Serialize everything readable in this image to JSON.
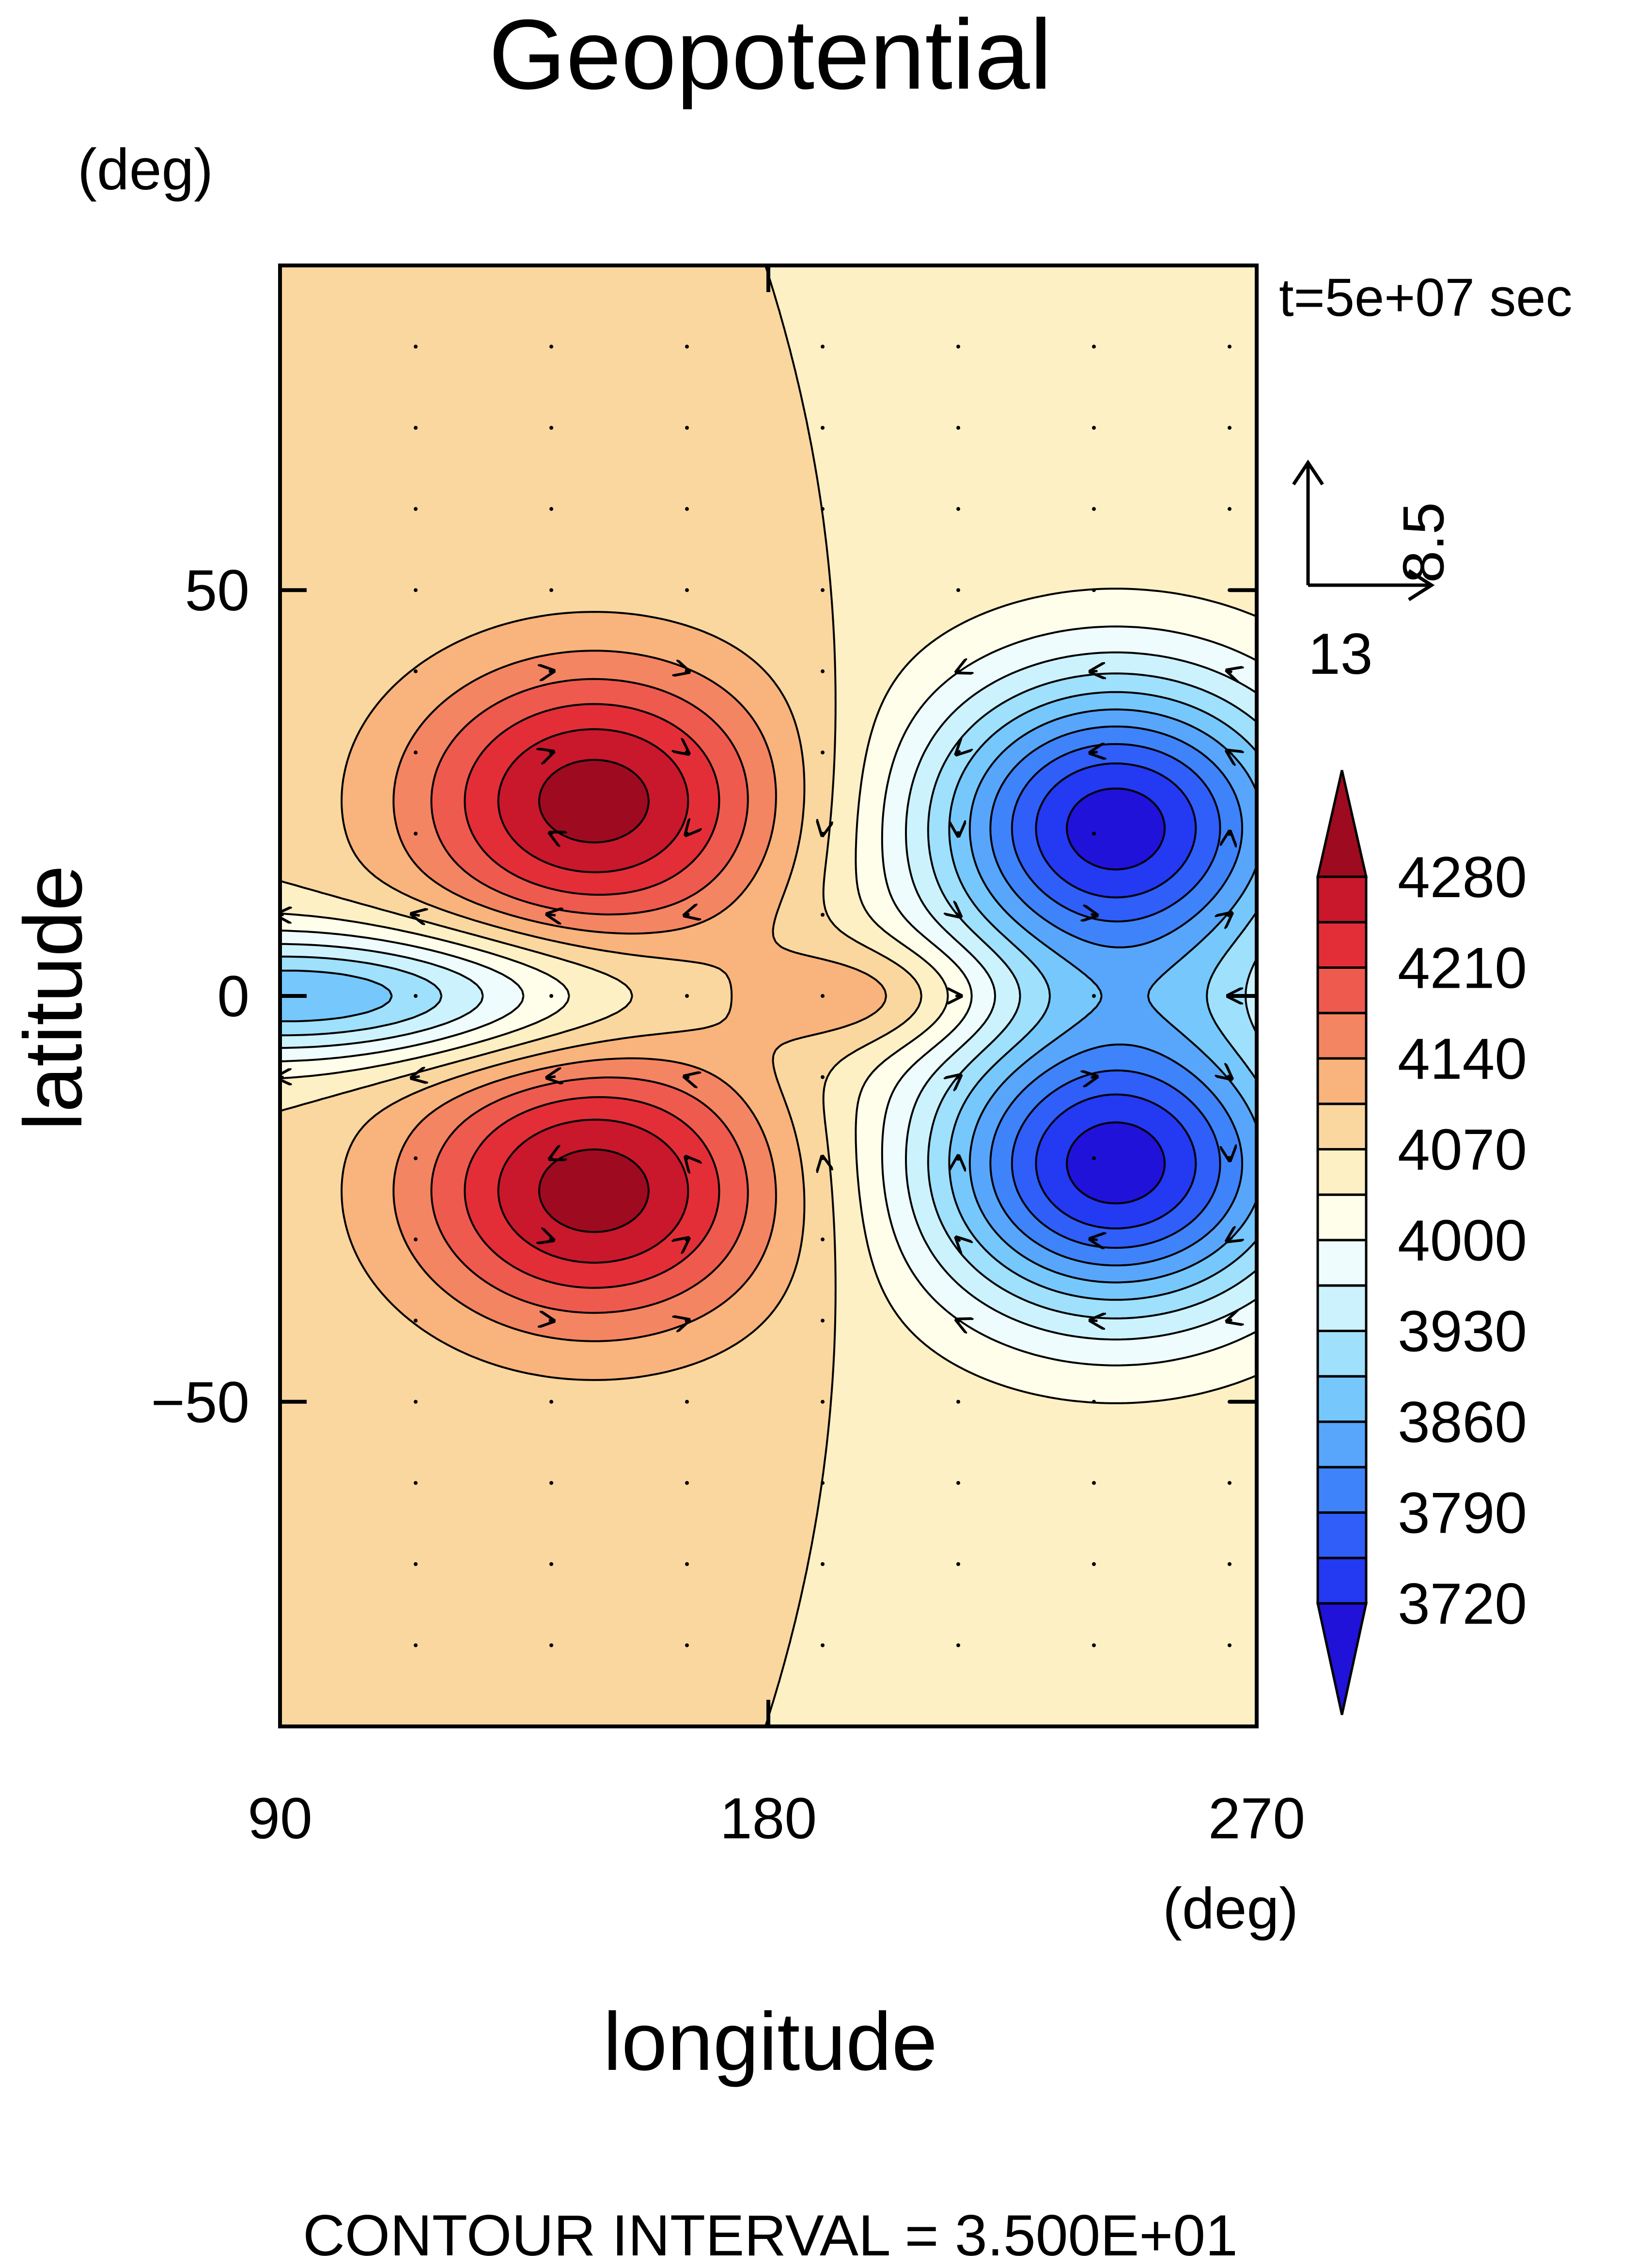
{
  "chart_data": {
    "type": "contour",
    "title": "Geopotential",
    "xlabel": "longitude",
    "ylabel": "latitude",
    "x_unit": "(deg)",
    "y_unit": "(deg)",
    "xlim": [
      90,
      270
    ],
    "ylim": [
      -90,
      90
    ],
    "x_ticks": [
      90,
      180,
      270
    ],
    "x_tick_labels": [
      "90",
      "180",
      "270"
    ],
    "y_ticks": [
      -50,
      0,
      50
    ],
    "y_tick_labels": [
      "−50",
      "0",
      "50"
    ],
    "time_label": "t=5e+07 sec",
    "reference_vector": {
      "x_value": "13",
      "y_value": "8.5"
    },
    "contour_interval_label": "CONTOUR INTERVAL = 3.500E+01",
    "colorbar": {
      "levels": [
        3720,
        3755,
        3790,
        3825,
        3860,
        3895,
        3930,
        3965,
        4000,
        4035,
        4070,
        4105,
        4140,
        4175,
        4210,
        4245,
        4280
      ],
      "labels": [
        "4280",
        "4210",
        "4140",
        "4070",
        "4000",
        "3930",
        "3860",
        "3790",
        "3720"
      ],
      "label_values": [
        4280,
        4210,
        4140,
        4070,
        4000,
        3930,
        3860,
        3790,
        3720
      ],
      "colors": [
        "#2012d8",
        "#2339f2",
        "#2f5ef9",
        "#3f83fa",
        "#58a6fb",
        "#76c8fc",
        "#9fe0fd",
        "#ccf3fd",
        "#eefcfd",
        "#fffeea",
        "#fdf0c4",
        "#fbd7a0",
        "#f8b47c",
        "#f48562",
        "#ef5a4e",
        "#e32e38",
        "#c9172c",
        "#9e0b20"
      ]
    },
    "field": {
      "mean": 4070,
      "highs": [
        {
          "lon": 148,
          "lat": 24,
          "value": 4290
        },
        {
          "lon": 148,
          "lat": -24,
          "value": 4290
        }
      ],
      "lows": [
        {
          "lon": 244,
          "lat": 21,
          "value": 3710
        },
        {
          "lon": 244,
          "lat": -21,
          "value": 3710
        }
      ],
      "equatorial_trough": {
        "lon": 95,
        "lat": 0,
        "value": 3860
      },
      "equatorial_ridge": {
        "lon": 200,
        "lat": 0,
        "value": 4160
      }
    }
  }
}
